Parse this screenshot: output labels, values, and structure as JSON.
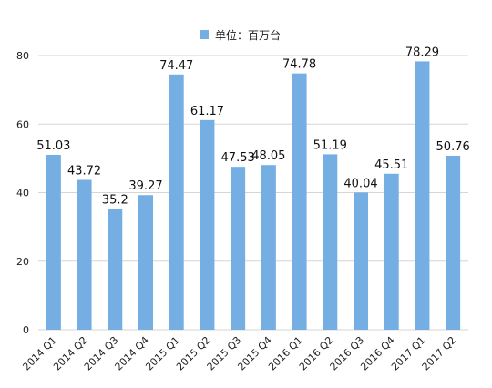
{
  "chart_data": {
    "type": "bar",
    "legend": {
      "series_name": "单位：百万台",
      "placement": "top-center"
    },
    "categories": [
      "2014 Q1",
      "2014 Q2",
      "2014 Q3",
      "2014 Q4",
      "2015 Q1",
      "2015 Q2",
      "2015 Q3",
      "2015 Q4",
      "2016 Q1",
      "2016 Q2",
      "2016 Q3",
      "2016 Q4",
      "2017 Q1",
      "2017 Q2"
    ],
    "series": [
      {
        "name": "单位：百万台",
        "values": [
          51.03,
          43.72,
          35.2,
          39.27,
          74.47,
          61.17,
          47.53,
          48.05,
          74.78,
          51.19,
          40.04,
          45.51,
          78.29,
          50.76
        ],
        "labels": [
          "51.03",
          "43.72",
          "35.2",
          "39.27",
          "74.47",
          "61.17",
          "47.53",
          "48.05",
          "74.78",
          "51.19",
          "40.04",
          "45.51",
          "78.29",
          "50.76"
        ]
      }
    ],
    "y_ticks": [
      "0",
      "20",
      "40",
      "60",
      "80"
    ],
    "ylim": [
      0,
      80
    ],
    "grid": true,
    "colors": {
      "bar": "#74aee3",
      "grid": "#d6d6d6",
      "text": "#222222"
    }
  }
}
